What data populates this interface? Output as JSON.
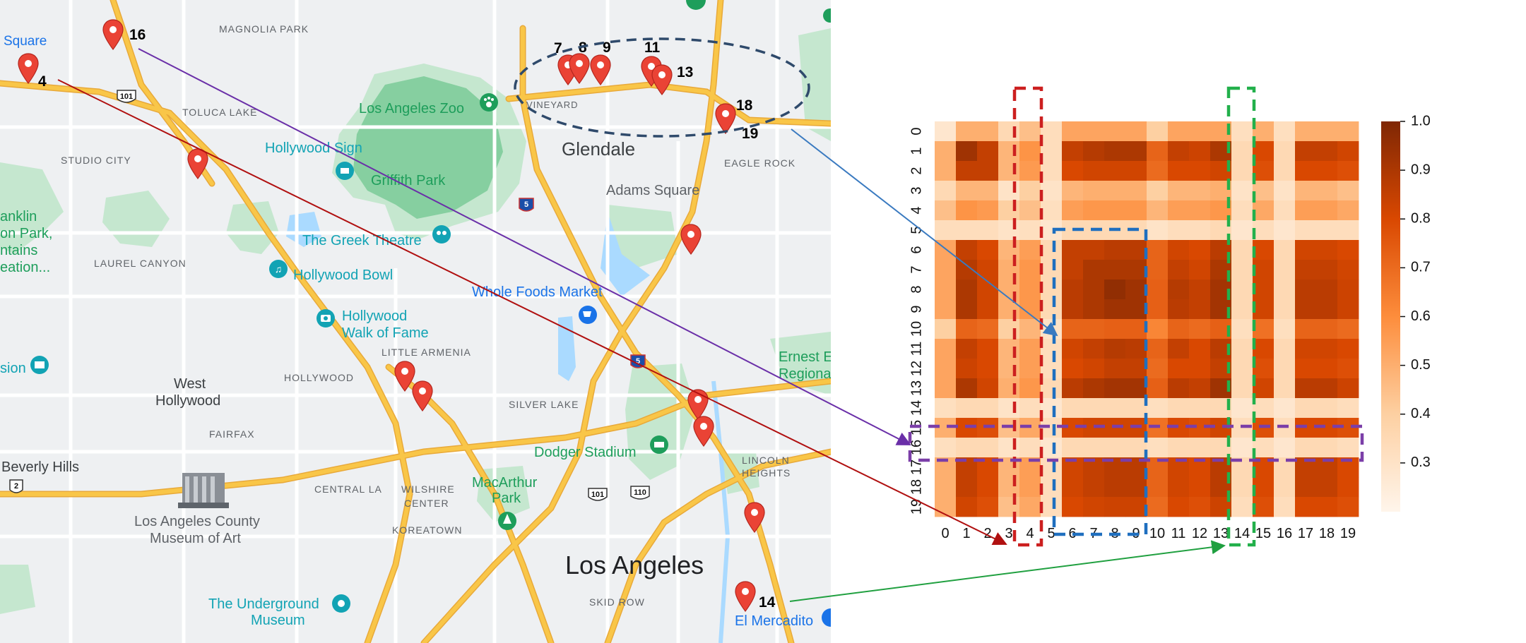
{
  "map": {
    "place_labels": [
      {
        "id": "square",
        "text": "Square"
      },
      {
        "id": "magnolia-park",
        "text": "MAGNOLIA PARK"
      },
      {
        "id": "toluca-lake",
        "text": "TOLUCA LAKE"
      },
      {
        "id": "studio-city",
        "text": "STUDIO CITY"
      },
      {
        "id": "la-zoo",
        "text": "Los Angeles Zoo"
      },
      {
        "id": "vineyard",
        "text": "VINEYARD"
      },
      {
        "id": "glendale",
        "text": "Glendale"
      },
      {
        "id": "eagle-rock",
        "text": "EAGLE ROCK"
      },
      {
        "id": "adams-square",
        "text": "Adams Square"
      },
      {
        "id": "hollywood-sign",
        "text": "Hollywood Sign"
      },
      {
        "id": "griffith-park",
        "text": "Griffith Park"
      },
      {
        "id": "greek-theatre",
        "text": "The Greek Theatre"
      },
      {
        "id": "laurel-canyon",
        "text": "LAUREL CANYON"
      },
      {
        "id": "hollywood-bowl",
        "text": "Hollywood Bowl"
      },
      {
        "id": "whole-foods",
        "text": "Whole Foods Market"
      },
      {
        "id": "walk-of-fame-1",
        "text": "Hollywood"
      },
      {
        "id": "walk-of-fame-2",
        "text": "Walk of Fame"
      },
      {
        "id": "little-armenia",
        "text": "LITTLE ARMENIA"
      },
      {
        "id": "hollywood",
        "text": "HOLLYWOOD"
      },
      {
        "id": "west-hollywood-1",
        "text": "West"
      },
      {
        "id": "west-hollywood-2",
        "text": "Hollywood"
      },
      {
        "id": "silver-lake",
        "text": "SILVER LAKE"
      },
      {
        "id": "fairfax",
        "text": "FAIRFAX"
      },
      {
        "id": "dodger-stadium",
        "text": "Dodger Stadium"
      },
      {
        "id": "lincoln-heights-1",
        "text": "LINCOLN"
      },
      {
        "id": "lincoln-heights-2",
        "text": "HEIGHTS"
      },
      {
        "id": "beverly-hills",
        "text": "Beverly Hills"
      },
      {
        "id": "central-la",
        "text": "CENTRAL LA"
      },
      {
        "id": "wilshire-center-1",
        "text": "WILSHIRE"
      },
      {
        "id": "wilshire-center-2",
        "text": "CENTER"
      },
      {
        "id": "macarthur-park-1",
        "text": "MacArthur"
      },
      {
        "id": "macarthur-park-2",
        "text": "Park"
      },
      {
        "id": "lacma-1",
        "text": "Los Angeles County"
      },
      {
        "id": "lacma-2",
        "text": "Museum of Art"
      },
      {
        "id": "koreatown",
        "text": "KOREATOWN"
      },
      {
        "id": "los-angeles",
        "text": "Los Angeles"
      },
      {
        "id": "underground-museum-1",
        "text": "The Underground"
      },
      {
        "id": "underground-museum-2",
        "text": "Museum"
      },
      {
        "id": "skid-row",
        "text": "SKID ROW"
      },
      {
        "id": "el-mercadito",
        "text": "El Mercadito"
      },
      {
        "id": "ernest-1",
        "text": "Ernest E"
      },
      {
        "id": "ernest-2",
        "text": "Regiona"
      },
      {
        "id": "franklin-1",
        "text": "anklin"
      },
      {
        "id": "franklin-2",
        "text": "on Park,"
      },
      {
        "id": "franklin-3",
        "text": "ntains"
      },
      {
        "id": "franklin-4",
        "text": "eation..."
      },
      {
        "id": "sion",
        "text": "sion"
      }
    ],
    "shields": [
      {
        "id": "us-101-north",
        "text": "101"
      },
      {
        "id": "i-5-north",
        "text": "5"
      },
      {
        "id": "i-5-south",
        "text": "5"
      },
      {
        "id": "us-101-south",
        "text": "101"
      },
      {
        "id": "ca-110",
        "text": "110"
      },
      {
        "id": "ca-2",
        "text": "2"
      }
    ],
    "marker_labels": [
      {
        "id": "m16",
        "text": "16"
      },
      {
        "id": "m4",
        "text": "4"
      },
      {
        "id": "m7",
        "text": "7"
      },
      {
        "id": "m8",
        "text": "8"
      },
      {
        "id": "m9",
        "text": "9"
      },
      {
        "id": "m11",
        "text": "11"
      },
      {
        "id": "m13",
        "text": "13"
      },
      {
        "id": "m18",
        "text": "18"
      },
      {
        "id": "m19",
        "text": "19"
      },
      {
        "id": "m14",
        "text": "14"
      }
    ],
    "colors": {
      "background": "#eef0f2",
      "park": "#c5e7cf",
      "park_dark": "#86cfa0",
      "water": "#aadaff",
      "highway": "#f9c648",
      "highway_edge": "#e8a93a",
      "road": "#ffffff",
      "marker": "#ea4335",
      "poi_teal": "#12a3b4",
      "poi_green": "#1e9e5b",
      "poi_blue": "#1a73e8"
    }
  },
  "chart_data": {
    "type": "heatmap",
    "x_tick_labels": [
      "0",
      "1",
      "2",
      "3",
      "4",
      "5",
      "6",
      "7",
      "8",
      "9",
      "10",
      "11",
      "12",
      "13",
      "14",
      "15",
      "16",
      "17",
      "18",
      "19"
    ],
    "y_tick_labels": [
      "0",
      "1",
      "2",
      "3",
      "4",
      "5",
      "6",
      "7",
      "8",
      "9",
      "10",
      "11",
      "12",
      "13",
      "14",
      "15",
      "16",
      "17",
      "18",
      "19"
    ],
    "colorbar": {
      "min": 0.2,
      "max": 1.0,
      "ticks": [
        "1.0",
        "0.9",
        "0.8",
        "0.7",
        "0.6",
        "0.5",
        "0.4",
        "0.3"
      ],
      "colormap": "Oranges"
    },
    "matrix": [
      [
        0.28,
        0.5,
        0.5,
        0.35,
        0.45,
        0.33,
        0.53,
        0.53,
        0.53,
        0.53,
        0.4,
        0.53,
        0.53,
        0.53,
        0.32,
        0.5,
        0.32,
        0.5,
        0.5,
        0.5
      ],
      [
        0.5,
        0.93,
        0.85,
        0.48,
        0.58,
        0.33,
        0.85,
        0.88,
        0.9,
        0.9,
        0.72,
        0.85,
        0.83,
        0.9,
        0.35,
        0.8,
        0.35,
        0.85,
        0.85,
        0.82
      ],
      [
        0.5,
        0.85,
        0.85,
        0.48,
        0.56,
        0.33,
        0.8,
        0.82,
        0.82,
        0.82,
        0.7,
        0.8,
        0.8,
        0.82,
        0.35,
        0.78,
        0.35,
        0.8,
        0.8,
        0.78
      ],
      [
        0.35,
        0.48,
        0.48,
        0.3,
        0.4,
        0.3,
        0.48,
        0.5,
        0.5,
        0.5,
        0.4,
        0.48,
        0.48,
        0.5,
        0.3,
        0.45,
        0.3,
        0.48,
        0.48,
        0.45
      ],
      [
        0.45,
        0.58,
        0.56,
        0.4,
        0.45,
        0.32,
        0.55,
        0.57,
        0.57,
        0.57,
        0.48,
        0.55,
        0.55,
        0.57,
        0.33,
        0.52,
        0.33,
        0.55,
        0.55,
        0.52
      ],
      [
        0.33,
        0.33,
        0.33,
        0.3,
        0.32,
        0.28,
        0.35,
        0.35,
        0.35,
        0.35,
        0.3,
        0.33,
        0.33,
        0.35,
        0.28,
        0.33,
        0.28,
        0.33,
        0.33,
        0.33
      ],
      [
        0.53,
        0.85,
        0.8,
        0.48,
        0.55,
        0.35,
        0.85,
        0.85,
        0.87,
        0.87,
        0.72,
        0.82,
        0.8,
        0.87,
        0.35,
        0.8,
        0.35,
        0.82,
        0.82,
        0.8
      ],
      [
        0.53,
        0.88,
        0.82,
        0.5,
        0.57,
        0.35,
        0.85,
        0.9,
        0.9,
        0.9,
        0.72,
        0.85,
        0.82,
        0.9,
        0.35,
        0.82,
        0.35,
        0.85,
        0.85,
        0.82
      ],
      [
        0.53,
        0.9,
        0.82,
        0.5,
        0.57,
        0.35,
        0.87,
        0.9,
        0.96,
        0.93,
        0.73,
        0.88,
        0.85,
        0.92,
        0.35,
        0.82,
        0.35,
        0.87,
        0.87,
        0.83
      ],
      [
        0.53,
        0.9,
        0.82,
        0.5,
        0.57,
        0.35,
        0.87,
        0.9,
        0.93,
        0.93,
        0.73,
        0.87,
        0.85,
        0.92,
        0.35,
        0.82,
        0.35,
        0.87,
        0.87,
        0.83
      ],
      [
        0.4,
        0.72,
        0.7,
        0.4,
        0.48,
        0.3,
        0.72,
        0.72,
        0.73,
        0.73,
        0.62,
        0.72,
        0.7,
        0.73,
        0.32,
        0.68,
        0.32,
        0.72,
        0.72,
        0.7
      ],
      [
        0.53,
        0.85,
        0.8,
        0.48,
        0.55,
        0.33,
        0.82,
        0.85,
        0.88,
        0.87,
        0.72,
        0.85,
        0.8,
        0.87,
        0.35,
        0.8,
        0.35,
        0.82,
        0.82,
        0.8
      ],
      [
        0.53,
        0.83,
        0.8,
        0.48,
        0.55,
        0.33,
        0.8,
        0.82,
        0.85,
        0.85,
        0.7,
        0.8,
        0.8,
        0.85,
        0.35,
        0.78,
        0.35,
        0.8,
        0.8,
        0.78
      ],
      [
        0.53,
        0.9,
        0.82,
        0.5,
        0.57,
        0.35,
        0.87,
        0.9,
        0.92,
        0.92,
        0.73,
        0.87,
        0.85,
        0.93,
        0.35,
        0.82,
        0.35,
        0.87,
        0.87,
        0.83
      ],
      [
        0.32,
        0.35,
        0.35,
        0.3,
        0.33,
        0.28,
        0.35,
        0.35,
        0.35,
        0.35,
        0.32,
        0.35,
        0.35,
        0.35,
        0.28,
        0.33,
        0.28,
        0.35,
        0.35,
        0.33
      ],
      [
        0.5,
        0.8,
        0.78,
        0.45,
        0.52,
        0.33,
        0.8,
        0.82,
        0.82,
        0.82,
        0.68,
        0.8,
        0.78,
        0.82,
        0.33,
        0.78,
        0.33,
        0.8,
        0.8,
        0.78
      ],
      [
        0.32,
        0.35,
        0.35,
        0.3,
        0.33,
        0.28,
        0.35,
        0.35,
        0.35,
        0.35,
        0.32,
        0.35,
        0.35,
        0.35,
        0.28,
        0.33,
        0.28,
        0.35,
        0.35,
        0.33
      ],
      [
        0.5,
        0.85,
        0.8,
        0.48,
        0.55,
        0.33,
        0.82,
        0.85,
        0.87,
        0.87,
        0.72,
        0.82,
        0.8,
        0.87,
        0.35,
        0.8,
        0.35,
        0.85,
        0.85,
        0.8
      ],
      [
        0.5,
        0.85,
        0.8,
        0.48,
        0.55,
        0.33,
        0.82,
        0.85,
        0.87,
        0.87,
        0.72,
        0.82,
        0.8,
        0.87,
        0.35,
        0.8,
        0.35,
        0.85,
        0.85,
        0.8
      ],
      [
        0.5,
        0.82,
        0.78,
        0.45,
        0.52,
        0.33,
        0.8,
        0.82,
        0.83,
        0.83,
        0.7,
        0.8,
        0.78,
        0.83,
        0.33,
        0.78,
        0.33,
        0.8,
        0.8,
        0.78
      ]
    ],
    "highlights": [
      {
        "id": "column-4",
        "color": "#cc1f1f"
      },
      {
        "id": "columns-6-9-rows-5-19",
        "color": "#1f6fbf"
      },
      {
        "id": "column-14",
        "color": "#22b04b"
      },
      {
        "id": "row-16",
        "color": "#7b3ea8"
      }
    ],
    "connectors": [
      {
        "id": "marker-4-to-column-4",
        "color": "#b01010"
      },
      {
        "id": "marker-16-to-row-16",
        "color": "#6a2fa8"
      },
      {
        "id": "cluster-to-block",
        "color": "#3a7ac0"
      },
      {
        "id": "marker-14-to-column-14",
        "color": "#20a040"
      }
    ]
  }
}
